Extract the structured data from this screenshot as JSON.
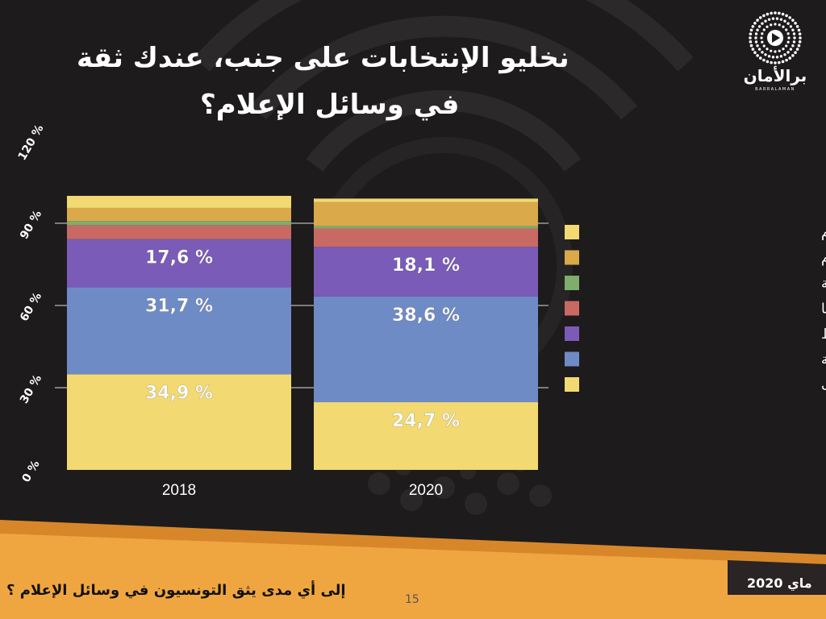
{
  "title": {
    "line1": "نخليو الإنتخابات على جنب، عندك ثقة",
    "line2": "في وسائل الإعلام؟"
  },
  "logo": {
    "name": "برالأمان",
    "subtitle": "BARRALAMAN",
    "icon": "play-dots-icon"
  },
  "footer": {
    "question": "إلى أي مدى يثق التونسيون في وسائل الإعلام ؟",
    "page_number": "15",
    "date": "ماي 2020"
  },
  "colors": {
    "background": "#1d1b1c",
    "footer_band": "#f0a640",
    "footer_band_dark": "#d7872a"
  },
  "chart_data": {
    "type": "bar",
    "stacked": true,
    "categories": [
      "2018",
      "2020"
    ],
    "ylim": [
      0,
      120
    ],
    "yticks": [
      "0 %",
      "30 %",
      "60 %",
      "90 %",
      "120 %"
    ],
    "series": [
      {
        "name": "حتى طرف",
        "color": "#f2d972",
        "values": [
          34.9,
          24.7
        ],
        "labels": [
          "34,9 %",
          "24,7 %"
        ]
      },
      {
        "name": "شوية",
        "color": "#6f8bc6",
        "values": [
          31.7,
          38.6
        ],
        "labels": [
          "31,7 %",
          "38,6 %"
        ]
      },
      {
        "name": "متوسط",
        "color": "#7a5bb8",
        "values": [
          17.6,
          18.1
        ],
        "labels": [
          "17,6 %",
          "18,1 %"
        ]
      },
      {
        "name": "برشا",
        "color": "#c86a63",
        "values": [
          5.1,
          6.7
        ],
        "labels": [
          "",
          ""
        ]
      },
      {
        "name": "ثقة عمية",
        "color": "#7ead6c",
        "values": [
          1.5,
          0.9
        ],
        "labels": [
          "",
          ""
        ]
      },
      {
        "name": "حسب وسيلة الإعلام",
        "color": "#d9a94a",
        "values": [
          4.8,
          8.7
        ],
        "labels": [
          "",
          ""
        ]
      },
      {
        "name": "ما عندي حتى علاقة بوسائل الإعلام",
        "color": "#f2d972",
        "values": [
          4.4,
          1.3
        ],
        "labels": [
          "",
          ""
        ]
      }
    ],
    "legend_position": "right",
    "grid": false
  }
}
